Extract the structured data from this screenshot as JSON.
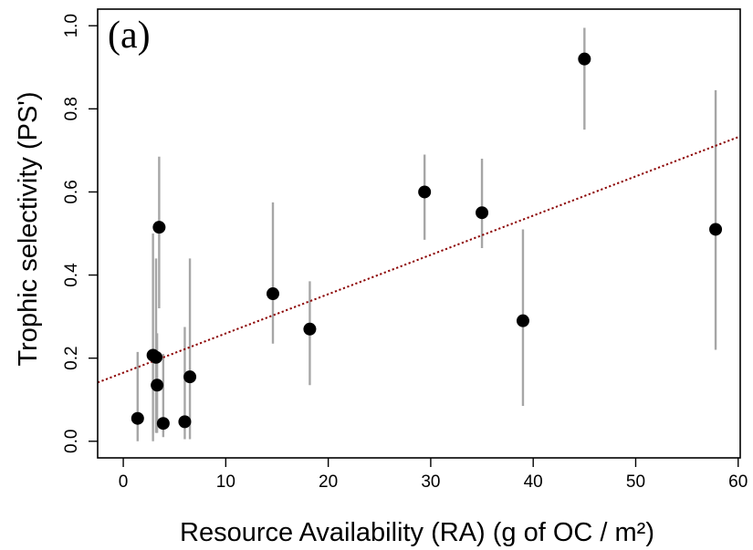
{
  "chart_data": {
    "type": "scatter",
    "panel_label": "(a)",
    "xlabel": "Resource Availability (RA) (g of OC / m²)",
    "ylabel": "Trophic selectivity (PS')",
    "xlim": [
      -2.5,
      60.2
    ],
    "ylim": [
      -0.04,
      1.04
    ],
    "x_ticks": [
      0,
      10,
      20,
      30,
      40,
      50,
      60
    ],
    "x_tick_labels": [
      "0",
      "10",
      "20",
      "30",
      "40",
      "50",
      "60"
    ],
    "y_ticks": [
      0.0,
      0.2,
      0.4,
      0.6,
      0.8,
      1.0
    ],
    "y_tick_labels": [
      "0.0",
      "0.2",
      "0.4",
      "0.6",
      "0.8",
      "1.0"
    ],
    "grid": false,
    "colors": {
      "points": "#000000",
      "error_bars": "#a6a6a6",
      "trend_line": "#8b0000"
    },
    "points": [
      {
        "x": 1.4,
        "y": 0.055,
        "y_low": 0.0,
        "y_high": 0.215
      },
      {
        "x": 2.9,
        "y": 0.207,
        "y_low": 0.0,
        "y_high": 0.5
      },
      {
        "x": 3.2,
        "y": 0.202,
        "y_low": 0.02,
        "y_high": 0.44
      },
      {
        "x": 3.3,
        "y": 0.135,
        "y_low": 0.02,
        "y_high": 0.26
      },
      {
        "x": 3.5,
        "y": 0.515,
        "y_low": 0.32,
        "y_high": 0.685
      },
      {
        "x": 3.9,
        "y": 0.043,
        "y_low": 0.01,
        "y_high": 0.21
      },
      {
        "x": 6.0,
        "y": 0.047,
        "y_low": 0.005,
        "y_high": 0.275
      },
      {
        "x": 6.5,
        "y": 0.155,
        "y_low": 0.005,
        "y_high": 0.44
      },
      {
        "x": 14.6,
        "y": 0.355,
        "y_low": 0.235,
        "y_high": 0.575
      },
      {
        "x": 18.2,
        "y": 0.27,
        "y_low": 0.135,
        "y_high": 0.385
      },
      {
        "x": 29.4,
        "y": 0.6,
        "y_low": 0.485,
        "y_high": 0.69
      },
      {
        "x": 35.0,
        "y": 0.55,
        "y_low": 0.465,
        "y_high": 0.68
      },
      {
        "x": 39.0,
        "y": 0.29,
        "y_low": 0.085,
        "y_high": 0.51
      },
      {
        "x": 45.0,
        "y": 0.92,
        "y_low": 0.75,
        "y_high": 0.995
      },
      {
        "x": 57.8,
        "y": 0.51,
        "y_low": 0.22,
        "y_high": 0.845
      }
    ],
    "trend_line": {
      "intercept": 0.165,
      "slope": 0.00945,
      "style": "dotted"
    }
  }
}
